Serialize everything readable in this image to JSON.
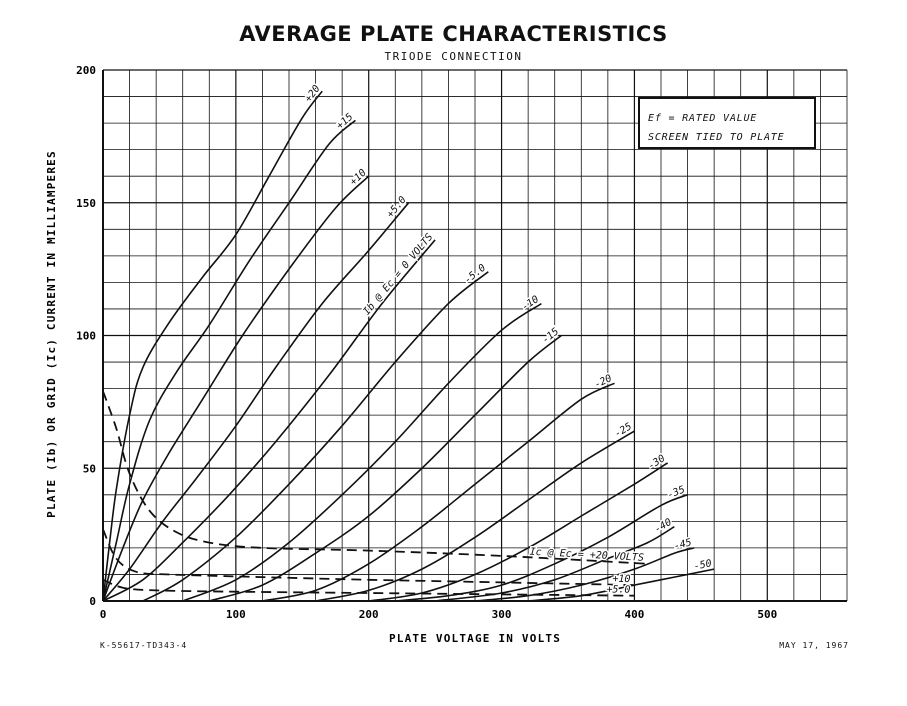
{
  "chart_data": {
    "type": "line",
    "title": "AVERAGE PLATE CHARACTERISTICS",
    "subtitle": "TRIODE CONNECTION",
    "xlabel": "PLATE VOLTAGE IN VOLTS",
    "ylabel": "PLATE (Ib) OR GRID (Ic) CURRENT IN MILLIAMPERES",
    "xlim": [
      0,
      560
    ],
    "ylim": [
      0,
      200
    ],
    "x_ticks": [
      "0",
      "100",
      "200",
      "300",
      "400",
      "500"
    ],
    "y_ticks": [
      "0",
      "50",
      "100",
      "150",
      "200"
    ],
    "grid": true,
    "note_lines": [
      "Ef = RATED VALUE",
      "SCREEN TIED TO PLATE"
    ],
    "footer_left": "K-55617-TD343-4",
    "footer_right": "MAY 17, 1967",
    "plate_series": [
      {
        "label": "+20",
        "points": [
          [
            0,
            0
          ],
          [
            5,
            22
          ],
          [
            10,
            42
          ],
          [
            20,
            70
          ],
          [
            30,
            88
          ],
          [
            50,
            105
          ],
          [
            75,
            122
          ],
          [
            100,
            138
          ],
          [
            125,
            160
          ],
          [
            150,
            182
          ],
          [
            165,
            192
          ]
        ]
      },
      {
        "label": "+15",
        "points": [
          [
            0,
            0
          ],
          [
            10,
            22
          ],
          [
            20,
            44
          ],
          [
            35,
            68
          ],
          [
            55,
            86
          ],
          [
            80,
            104
          ],
          [
            110,
            128
          ],
          [
            140,
            150
          ],
          [
            170,
            172
          ],
          [
            190,
            181
          ]
        ]
      },
      {
        "label": "+10",
        "points": [
          [
            0,
            0
          ],
          [
            15,
            20
          ],
          [
            30,
            38
          ],
          [
            50,
            56
          ],
          [
            75,
            76
          ],
          [
            105,
            100
          ],
          [
            140,
            125
          ],
          [
            175,
            148
          ],
          [
            200,
            160
          ]
        ]
      },
      {
        "label": "+5.0",
        "points": [
          [
            0,
            0
          ],
          [
            20,
            12
          ],
          [
            45,
            30
          ],
          [
            70,
            46
          ],
          [
            100,
            66
          ],
          [
            130,
            88
          ],
          [
            165,
            112
          ],
          [
            200,
            132
          ],
          [
            230,
            150
          ]
        ]
      },
      {
        "label": "Ib @ Ec = 0 VOLTS",
        "points": [
          [
            0,
            0
          ],
          [
            30,
            8
          ],
          [
            60,
            22
          ],
          [
            95,
            40
          ],
          [
            130,
            60
          ],
          [
            170,
            85
          ],
          [
            210,
            112
          ],
          [
            250,
            136
          ]
        ]
      },
      {
        "label": "-5.0",
        "points": [
          [
            30,
            0
          ],
          [
            60,
            8
          ],
          [
            100,
            24
          ],
          [
            140,
            44
          ],
          [
            180,
            66
          ],
          [
            220,
            90
          ],
          [
            260,
            112
          ],
          [
            290,
            124
          ]
        ]
      },
      {
        "label": "-10",
        "points": [
          [
            60,
            0
          ],
          [
            100,
            8
          ],
          [
            140,
            22
          ],
          [
            180,
            40
          ],
          [
            220,
            60
          ],
          [
            260,
            82
          ],
          [
            300,
            102
          ],
          [
            330,
            112
          ]
        ]
      },
      {
        "label": "-15",
        "points": [
          [
            80,
            0
          ],
          [
            120,
            6
          ],
          [
            160,
            18
          ],
          [
            200,
            32
          ],
          [
            240,
            50
          ],
          [
            280,
            70
          ],
          [
            320,
            90
          ],
          [
            345,
            100
          ]
        ]
      },
      {
        "label": "-20",
        "points": [
          [
            120,
            0
          ],
          [
            160,
            4
          ],
          [
            200,
            14
          ],
          [
            240,
            28
          ],
          [
            280,
            44
          ],
          [
            320,
            60
          ],
          [
            360,
            76
          ],
          [
            385,
            82
          ]
        ]
      },
      {
        "label": "-25",
        "points": [
          [
            160,
            0
          ],
          [
            200,
            4
          ],
          [
            240,
            12
          ],
          [
            280,
            24
          ],
          [
            320,
            38
          ],
          [
            360,
            52
          ],
          [
            400,
            64
          ]
        ]
      },
      {
        "label": "-30",
        "points": [
          [
            200,
            0
          ],
          [
            240,
            3
          ],
          [
            280,
            10
          ],
          [
            320,
            20
          ],
          [
            360,
            32
          ],
          [
            400,
            44
          ],
          [
            425,
            52
          ]
        ]
      },
      {
        "label": "-35",
        "points": [
          [
            220,
            0
          ],
          [
            260,
            2
          ],
          [
            300,
            6
          ],
          [
            340,
            14
          ],
          [
            380,
            24
          ],
          [
            420,
            36
          ],
          [
            440,
            40
          ]
        ]
      },
      {
        "label": "-40",
        "points": [
          [
            250,
            0
          ],
          [
            300,
            3
          ],
          [
            340,
            8
          ],
          [
            380,
            16
          ],
          [
            410,
            22
          ],
          [
            430,
            28
          ]
        ]
      },
      {
        "label": "-45",
        "points": [
          [
            280,
            0
          ],
          [
            320,
            2
          ],
          [
            360,
            6
          ],
          [
            400,
            12
          ],
          [
            430,
            18
          ],
          [
            445,
            20
          ]
        ]
      },
      {
        "label": "-50",
        "points": [
          [
            320,
            0
          ],
          [
            360,
            2
          ],
          [
            400,
            6
          ],
          [
            430,
            9
          ],
          [
            460,
            12
          ]
        ]
      }
    ],
    "grid_series": [
      {
        "label": "Ic @ Ec = +20 VOLTS",
        "points": [
          [
            0,
            79
          ],
          [
            10,
            65
          ],
          [
            20,
            48
          ],
          [
            35,
            34
          ],
          [
            55,
            26
          ],
          [
            80,
            22
          ],
          [
            120,
            20
          ],
          [
            200,
            19
          ],
          [
            300,
            17
          ],
          [
            410,
            14
          ]
        ]
      },
      {
        "label": "+10",
        "points": [
          [
            0,
            27
          ],
          [
            10,
            16
          ],
          [
            25,
            11
          ],
          [
            50,
            10
          ],
          [
            120,
            9
          ],
          [
            200,
            8
          ],
          [
            300,
            7
          ],
          [
            400,
            6
          ]
        ]
      },
      {
        "label": "+5.0",
        "points": [
          [
            0,
            8
          ],
          [
            15,
            5
          ],
          [
            40,
            4
          ],
          [
            100,
            3.5
          ],
          [
            200,
            3
          ],
          [
            300,
            2.5
          ],
          [
            400,
            2
          ]
        ]
      }
    ]
  }
}
